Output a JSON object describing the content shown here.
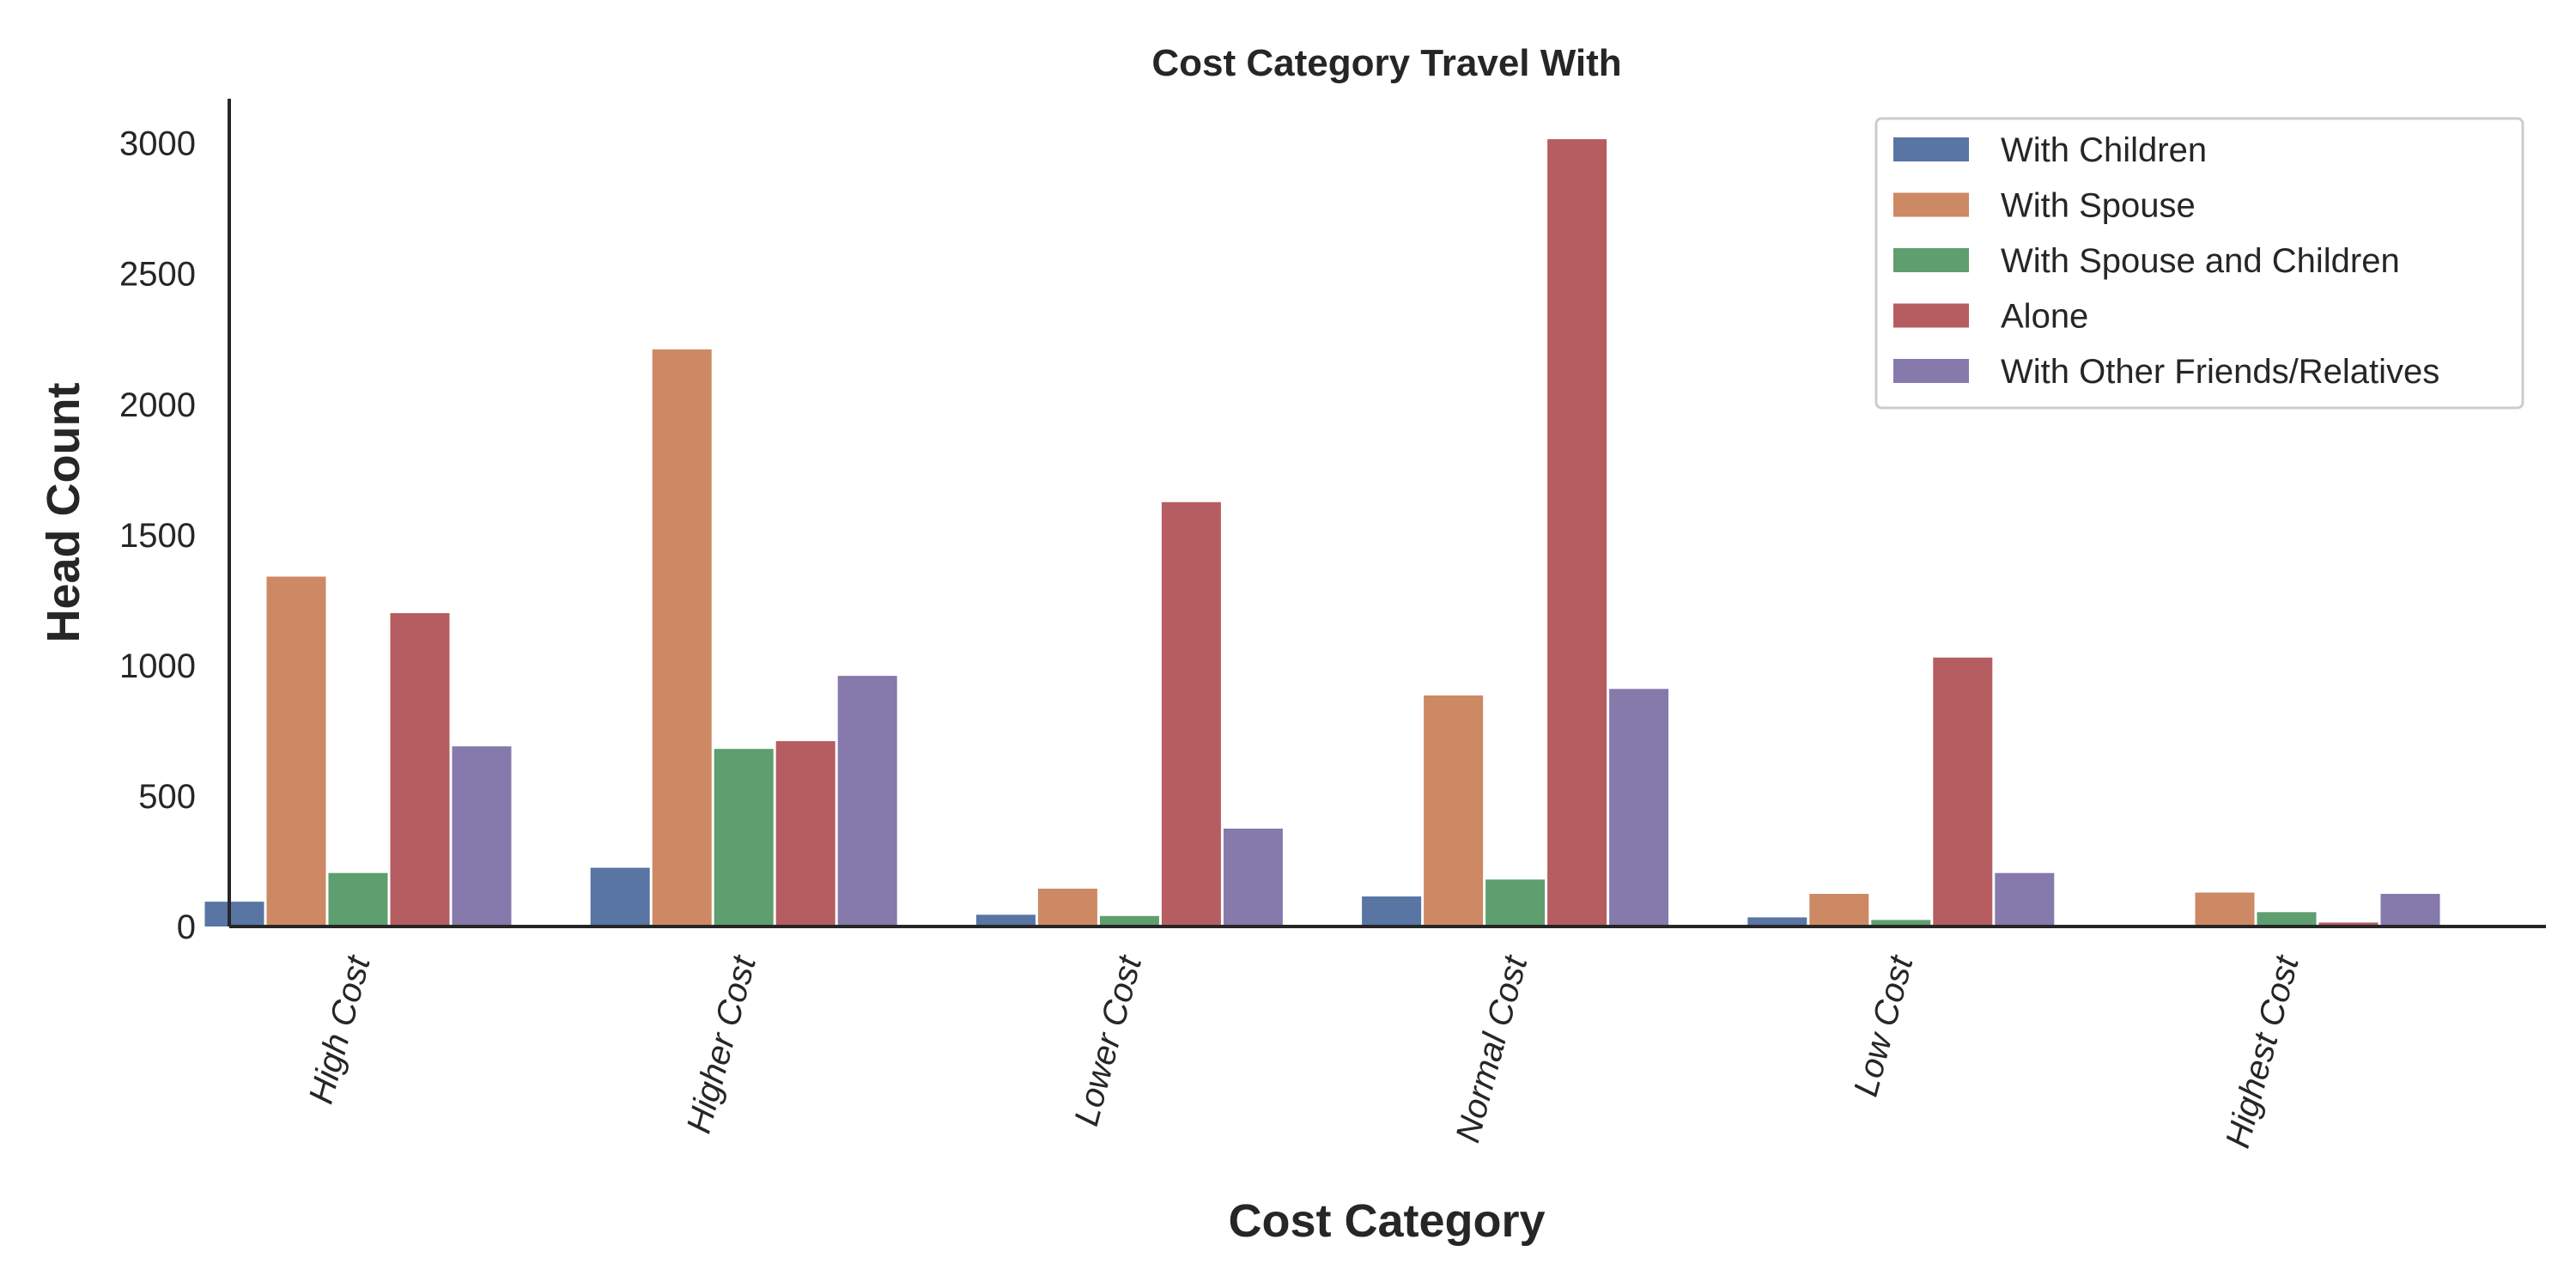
{
  "chart_data": {
    "type": "bar",
    "title": "Cost Category Travel With",
    "xlabel": "Cost Category",
    "ylabel": "Head Count",
    "categories": [
      "High Cost",
      "Higher Cost",
      "Lower Cost",
      "Normal Cost",
      "Low Cost",
      "Highest Cost"
    ],
    "ylim": [
      0,
      3170
    ],
    "yticks": [
      "0",
      "500",
      "1000",
      "1500",
      "2000",
      "2500",
      "3000"
    ],
    "grid": false,
    "legend_position": "top-right",
    "series": [
      {
        "name": "With Children",
        "color": "#5875a4",
        "values": [
          95,
          225,
          45,
          115,
          35,
          0
        ]
      },
      {
        "name": "With Spouse",
        "color": "#cc8963",
        "values": [
          1340,
          2210,
          145,
          885,
          125,
          130
        ]
      },
      {
        "name": "With Spouse and Children",
        "color": "#5f9e6e",
        "values": [
          205,
          680,
          40,
          180,
          25,
          55
        ]
      },
      {
        "name": "Alone",
        "color": "#b55d60",
        "values": [
          1200,
          710,
          1625,
          3015,
          1030,
          15
        ]
      },
      {
        "name": "With Other Friends/Relatives",
        "color": "#857aab",
        "values": [
          690,
          960,
          375,
          910,
          205,
          125
        ]
      }
    ]
  }
}
